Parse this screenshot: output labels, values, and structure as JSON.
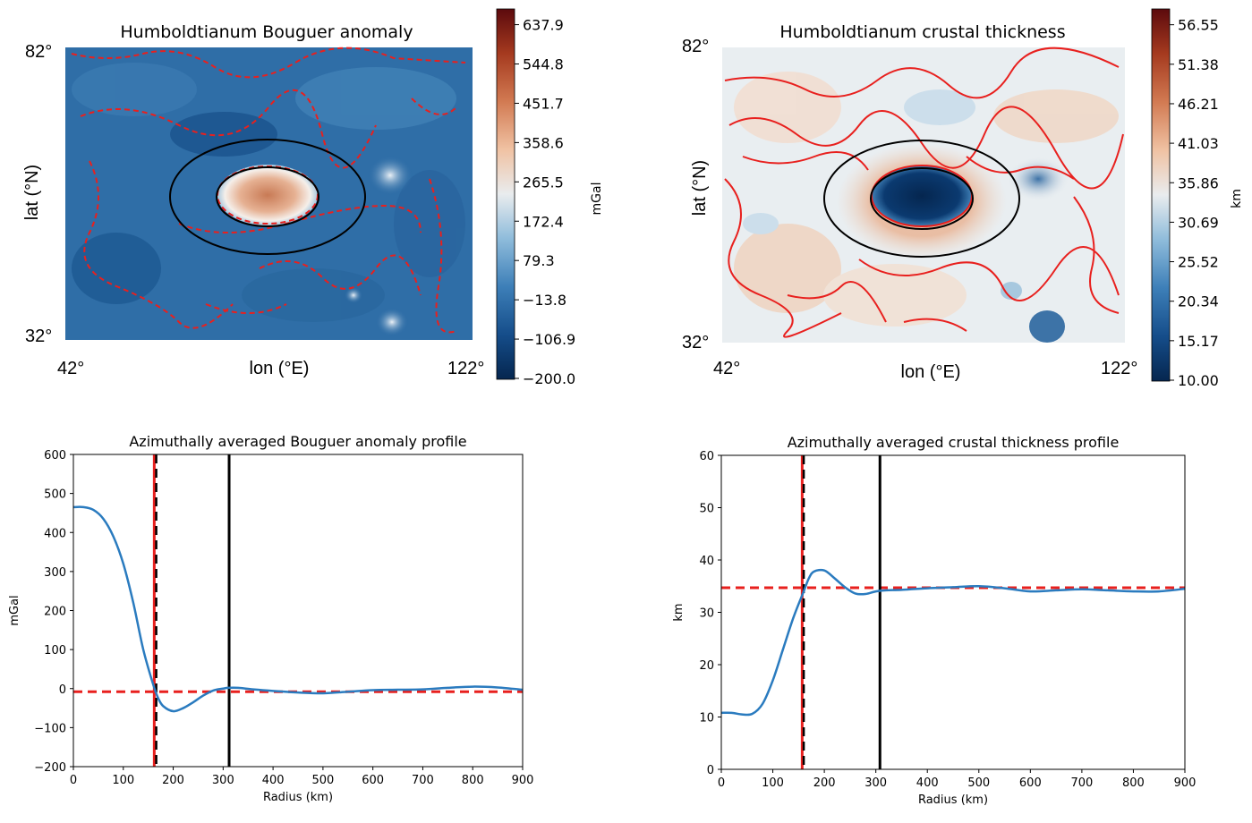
{
  "chart_data": [
    {
      "type": "heatmap",
      "title": "Humboldtianum Bouguer anomaly",
      "xlabel": "lon (°E)",
      "ylabel": "lat (°N)",
      "xticks": [
        "42°",
        "122°"
      ],
      "yticks": [
        "82°",
        "32°"
      ],
      "colorbar": {
        "label": "mGal",
        "ticks": [
          "637.9",
          "544.8",
          "451.7",
          "358.6",
          "265.5",
          "172.4",
          "79.3",
          "−13.8",
          "−106.9",
          "−200.0"
        ],
        "range": [
          -200.0,
          700
        ]
      }
    },
    {
      "type": "heatmap",
      "title": "Humboldtianum crustal thickness",
      "xlabel": "lon (°E)",
      "ylabel": "lat (°N)",
      "xticks": [
        "42°",
        "122°"
      ],
      "yticks": [
        "82°",
        "32°"
      ],
      "colorbar": {
        "label": "km",
        "ticks": [
          "56.55",
          "51.38",
          "46.21",
          "41.03",
          "35.86",
          "30.69",
          "25.52",
          "20.34",
          "15.17",
          "10.00"
        ],
        "range": [
          10.0,
          60
        ]
      }
    },
    {
      "type": "line",
      "title": "Azimuthally averaged Bouguer anomaly profile",
      "xlabel": "Radius (km)",
      "ylabel": "mGal",
      "xlim": [
        0,
        900
      ],
      "ylim": [
        -200,
        600
      ],
      "xticks": [
        "0",
        "100",
        "200",
        "300",
        "400",
        "500",
        "600",
        "700",
        "800",
        "900"
      ],
      "yticks": [
        "600",
        "500",
        "400",
        "300",
        "200",
        "100",
        "0",
        "−100",
        "−200"
      ],
      "series": [
        {
          "x": [
            0,
            20,
            40,
            60,
            80,
            100,
            120,
            140,
            160,
            170,
            180,
            200,
            220,
            240,
            260,
            280,
            300,
            310,
            330,
            360,
            400,
            450,
            500,
            550,
            600,
            650,
            700,
            750,
            800,
            850,
            900
          ],
          "y": [
            465,
            465,
            458,
            435,
            390,
            320,
            220,
            100,
            10,
            -25,
            -45,
            -58,
            -50,
            -35,
            -18,
            -5,
            0,
            2,
            2,
            -2,
            -6,
            -10,
            -12,
            -8,
            -4,
            -3,
            -2,
            2,
            5,
            3,
            -3
          ],
          "color": "#2a7bbf"
        }
      ],
      "hlines": [
        {
          "y": -8,
          "color": "#e8201e",
          "style": "dashed"
        }
      ],
      "vlines": [
        {
          "x": 162,
          "color": "#e8201e",
          "style": "solid"
        },
        {
          "x": 166,
          "color": "#000000",
          "style": "dashed"
        },
        {
          "x": 312,
          "color": "#000000",
          "style": "solid"
        }
      ]
    },
    {
      "type": "line",
      "title": "Azimuthally averaged crustal thickness profile",
      "xlabel": "Radius (km)",
      "ylabel": "km",
      "xlim": [
        0,
        900
      ],
      "ylim": [
        0,
        60
      ],
      "xticks": [
        "0",
        "100",
        "200",
        "300",
        "400",
        "500",
        "600",
        "700",
        "800",
        "900"
      ],
      "yticks": [
        "60",
        "50",
        "40",
        "30",
        "20",
        "10",
        "0"
      ],
      "series": [
        {
          "x": [
            0,
            20,
            40,
            60,
            80,
            100,
            120,
            140,
            160,
            170,
            180,
            200,
            220,
            240,
            260,
            280,
            300,
            320,
            350,
            400,
            450,
            500,
            550,
            600,
            650,
            700,
            750,
            800,
            850,
            900
          ],
          "y": [
            10.8,
            10.8,
            10.5,
            10.6,
            12.5,
            17,
            23,
            29,
            34,
            36.5,
            37.8,
            38,
            36.5,
            34.8,
            33.6,
            33.5,
            34,
            34.2,
            34.3,
            34.6,
            34.8,
            35,
            34.6,
            34,
            34.2,
            34.4,
            34.2,
            34,
            34,
            34.5
          ],
          "color": "#2a7bbf"
        }
      ],
      "hlines": [
        {
          "y": 34.7,
          "color": "#e8201e",
          "style": "dashed"
        }
      ],
      "vlines": [
        {
          "x": 157,
          "color": "#e8201e",
          "style": "solid"
        },
        {
          "x": 160,
          "color": "#000000",
          "style": "dashed"
        },
        {
          "x": 308,
          "color": "#000000",
          "style": "solid"
        }
      ]
    }
  ]
}
